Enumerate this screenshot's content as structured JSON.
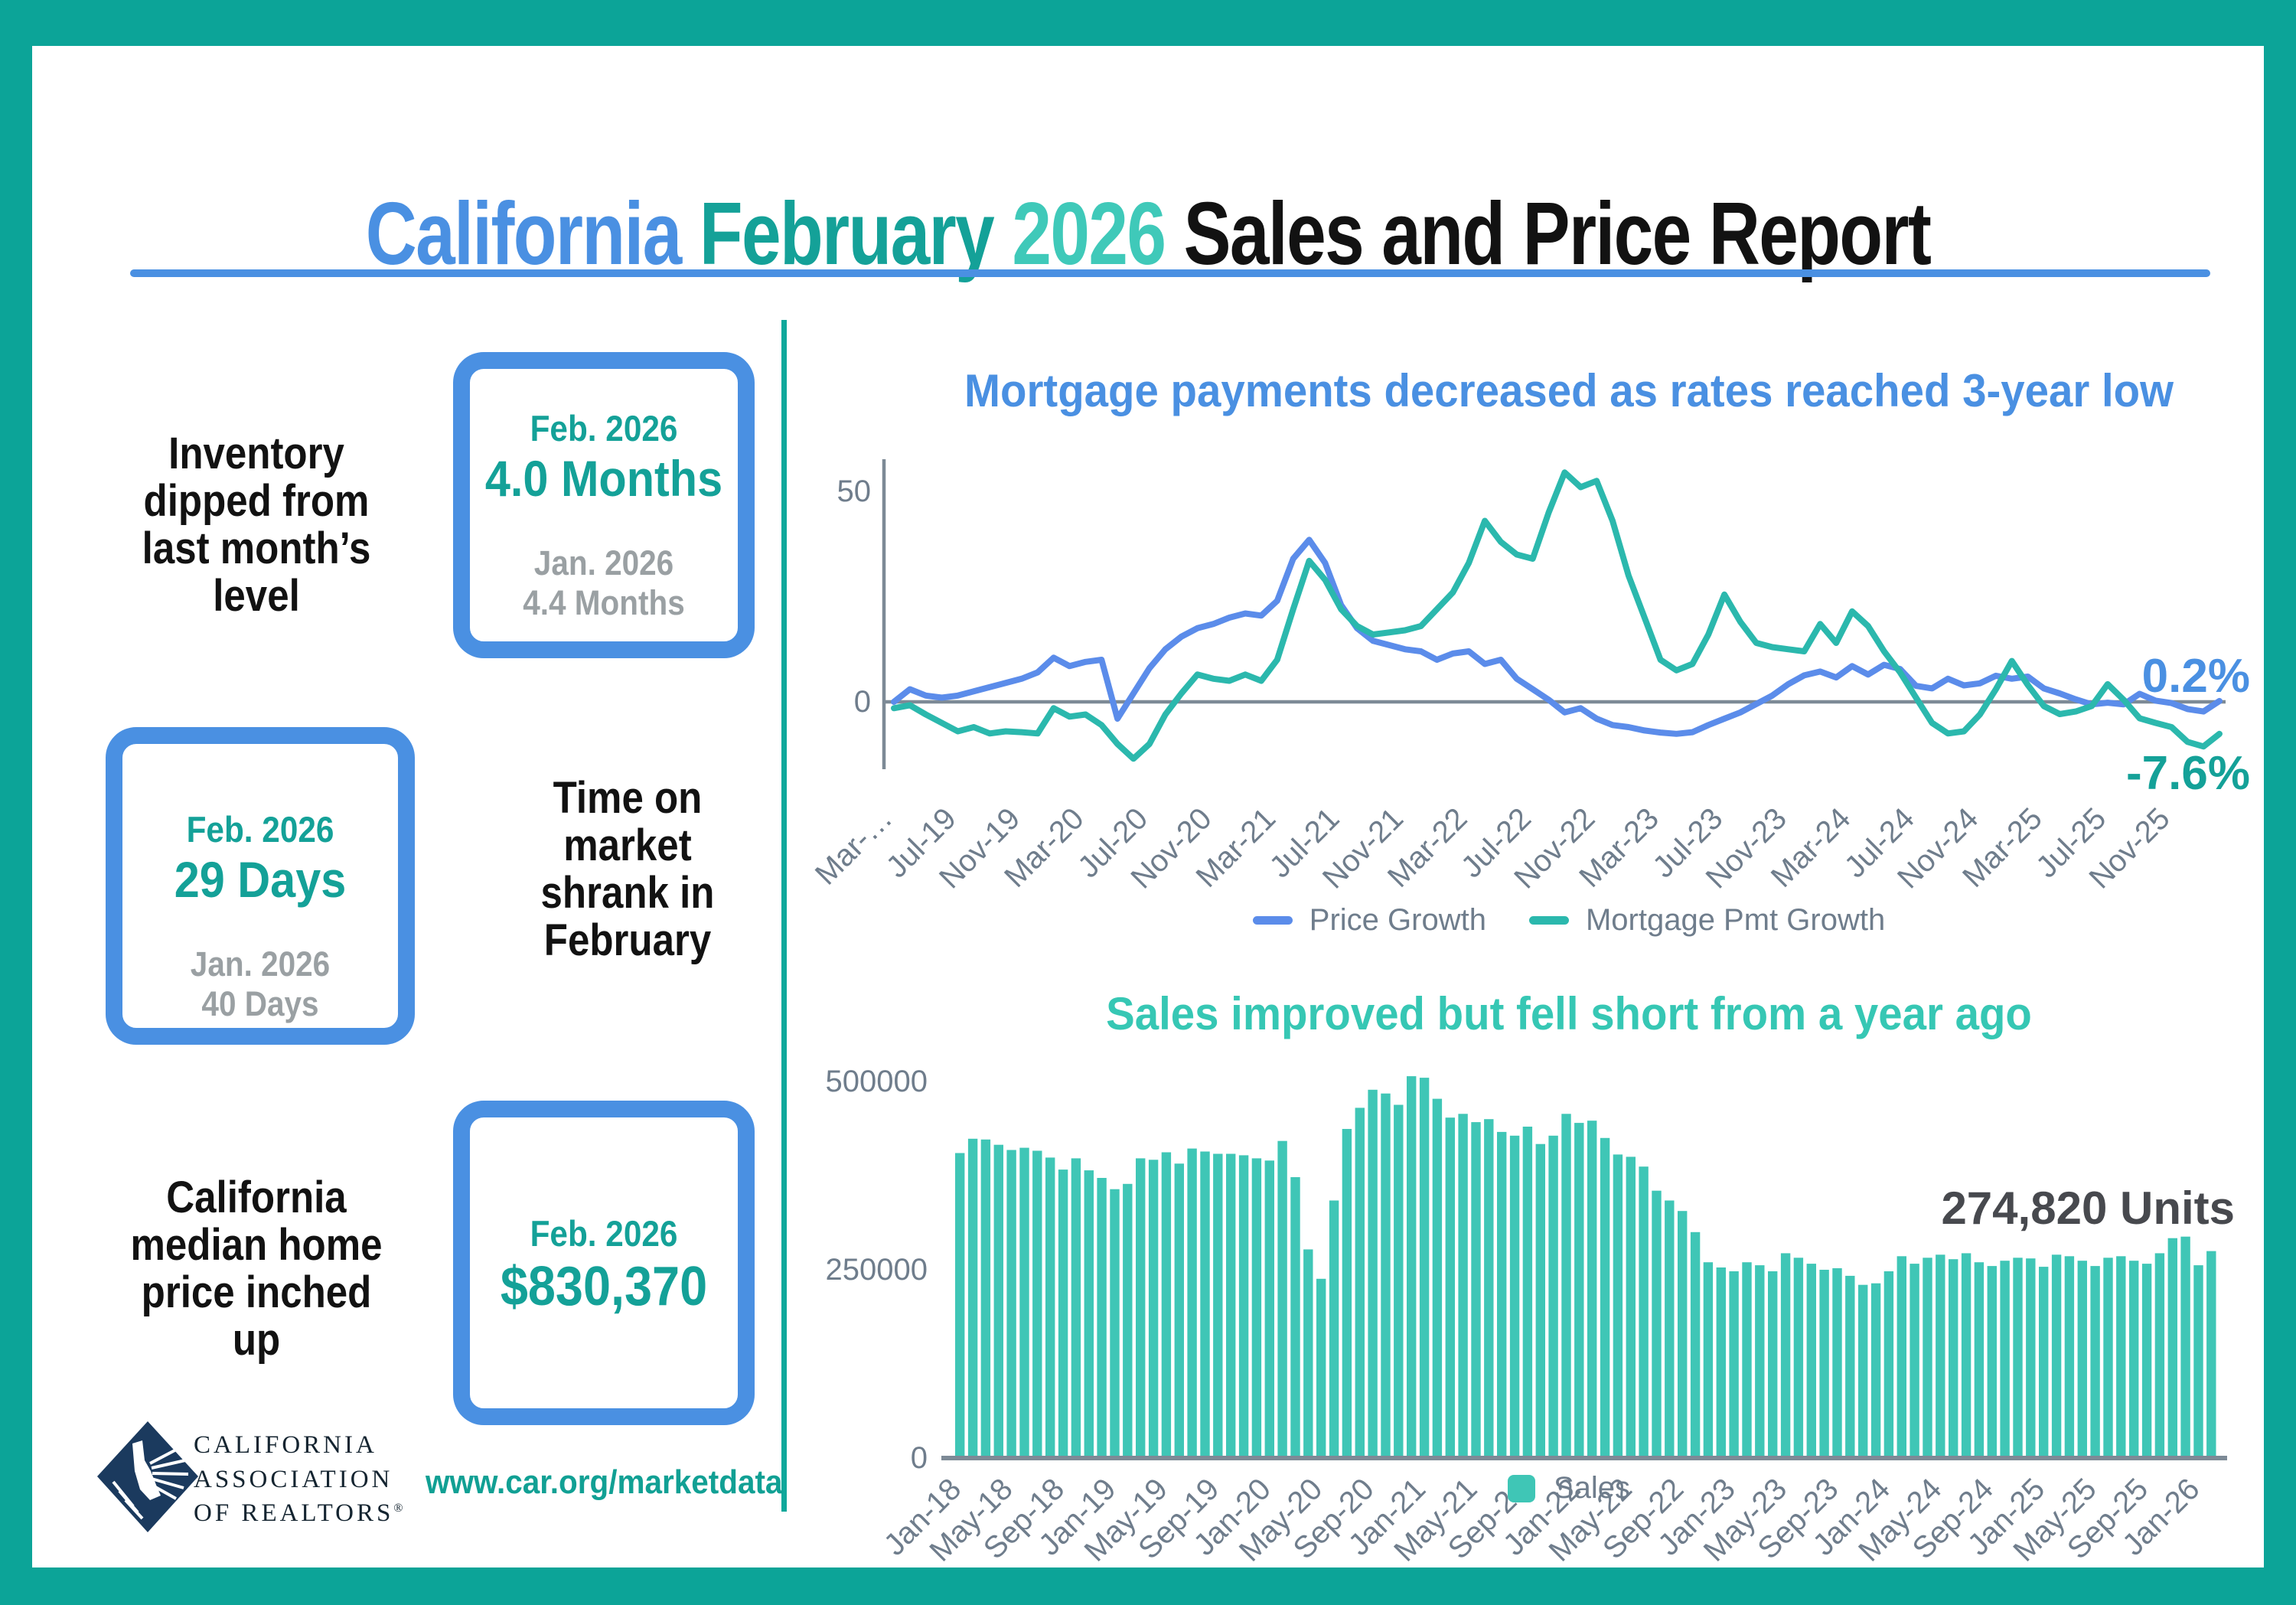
{
  "page": {
    "title_parts": {
      "california": "California",
      "february": "February",
      "year": "2026",
      "rest": "Sales and Price Report"
    },
    "stats": [
      {
        "label": "Inventory\ndipped from\nlast month’s\nlevel",
        "current_period": "Feb. 2026",
        "current_value": "4.0 Months",
        "previous_period": "Jan. 2026",
        "previous_value": "4.4 Months"
      },
      {
        "label": "Time on\nmarket\nshrank in\nFebruary",
        "current_period": "Feb. 2026",
        "current_value": "29 Days",
        "previous_period": "Jan. 2026",
        "previous_value": "40 Days"
      },
      {
        "label": "California\nmedian home\nprice inched\nup",
        "current_period": "Feb. 2026",
        "current_value": "$830,370"
      }
    ],
    "brand": {
      "line1": "CALIFORNIA",
      "line2": "ASSOCIATION",
      "line3": "OF REALTORS",
      "reg_mark": "®",
      "url": "www.car.org/marketdata"
    },
    "palette": {
      "frame_teal": "#0ca498",
      "accent_blue": "#4a90e2",
      "accent_teal_dark": "#14a198",
      "accent_teal_light": "#3fc9b9",
      "stat_gray": "#9aa0a3",
      "axis_gray": "#7d8a96",
      "tick_gray": "#6f7d8c",
      "annotation_dark": "#47494e",
      "logo_navy": "#1b3a5e"
    }
  },
  "chart_data": [
    {
      "type": "line",
      "title": "Mortgage payments decreased as rates reached 3-year low",
      "xlabel": "",
      "ylabel": "",
      "y_ticks": [
        0,
        50
      ],
      "ylim": [
        -15,
        58
      ],
      "tick_every": 4,
      "grid": false,
      "legend_position": "bottom",
      "x_tick_labels": [
        "Mar-…",
        "Jul-19",
        "Nov-19",
        "Mar-20",
        "Jul-20",
        "Nov-20",
        "Mar-21",
        "Jul-21",
        "Nov-21",
        "Mar-22",
        "Jul-22",
        "Nov-22",
        "Mar-23",
        "Jul-23",
        "Nov-23",
        "Mar-24",
        "Jul-24",
        "Nov-24",
        "Mar-25",
        "Jul-25",
        "Nov-25"
      ],
      "x_range_months": "Mar-2019 to Feb-2026",
      "series": [
        {
          "name": "Price Growth",
          "color": "#5b8cea",
          "end_label": "0.2%",
          "values": [
            0,
            3,
            1.5,
            1,
            1.5,
            2.5,
            3.5,
            4.5,
            5.5,
            7,
            10.5,
            8.5,
            9.5,
            10,
            -4,
            2,
            8,
            12.5,
            15.5,
            17.5,
            18.5,
            20,
            21,
            20.5,
            24,
            34,
            38.5,
            33,
            23,
            17.5,
            14.5,
            13.5,
            12.5,
            12,
            10,
            11.5,
            12,
            9,
            10,
            5.5,
            3,
            0.5,
            -2.5,
            -1.5,
            -4,
            -5.5,
            -6,
            -6.8,
            -7.3,
            -7.6,
            -7.2,
            -5.5,
            -4,
            -2.5,
            -0.5,
            1.5,
            4.2,
            6.3,
            7.2,
            5.8,
            8.5,
            6.5,
            8.8,
            7.8,
            3.8,
            3.2,
            5.5,
            3.9,
            4.4,
            6.2,
            5.5,
            6,
            3.2,
            2,
            0.6,
            -0.6,
            -0.2,
            -0.6,
            1.9,
            0.3,
            -0.3,
            -1.7,
            -2.3,
            0.2
          ]
        },
        {
          "name": "Mortgage Pmt Growth",
          "color": "#2bb8ad",
          "end_label": "-7.6%",
          "values": [
            -1.5,
            -0.8,
            -3,
            -5,
            -7,
            -6,
            -7.5,
            -7,
            -7.2,
            -7.5,
            -1.5,
            -3.5,
            -3,
            -5.5,
            -10,
            -13.5,
            -10,
            -3,
            2,
            6.5,
            5.5,
            5,
            6.5,
            5,
            10,
            22,
            33.5,
            29,
            22,
            18,
            16,
            16.5,
            17,
            18,
            22,
            26,
            33,
            43,
            38,
            35,
            34,
            45,
            54.5,
            51,
            52.5,
            43,
            30,
            20,
            10,
            7.5,
            9,
            16,
            25.5,
            19,
            14,
            13,
            12.5,
            12,
            18.5,
            14,
            21.5,
            18,
            12,
            7,
            1,
            -5,
            -7.5,
            -7,
            -3,
            3,
            9.7,
            4,
            -1,
            -2.9,
            -2.3,
            -1,
            4.2,
            0.5,
            -3.9,
            -5,
            -6,
            -9.5,
            -10.6,
            -7.6
          ]
        }
      ]
    },
    {
      "type": "bar",
      "title": "Sales improved but fell short from a year ago",
      "xlabel": "",
      "ylabel": "",
      "y_ticks": [
        0,
        250000,
        500000
      ],
      "ylim": [
        0,
        515000
      ],
      "tick_every": 4,
      "grid": false,
      "legend_position": "bottom",
      "annotation": "274,820 Units",
      "x_tick_labels": [
        "Jan-18",
        "May-18",
        "Sep-18",
        "Jan-19",
        "May-19",
        "Sep-19",
        "Jan-20",
        "May-20",
        "Sep-20",
        "Jan-21",
        "May-21",
        "Sep-21",
        "Jan-22",
        "May-22",
        "Sep-22",
        "Jan-23",
        "May-23",
        "Sep-23",
        "Jan-24",
        "May-24",
        "Sep-24",
        "Jan-25",
        "May-25",
        "Sep-25",
        "Jan-26"
      ],
      "x_range_months": "Jan-2018 to Feb-2026",
      "series": [
        {
          "name": "Sales",
          "color": "#3fc6b6",
          "values": [
            405000,
            424000,
            423000,
            416000,
            409000,
            412000,
            408000,
            399000,
            383000,
            398000,
            382000,
            372000,
            357000,
            364000,
            398000,
            396000,
            406000,
            391000,
            411000,
            407000,
            404000,
            404000,
            402000,
            398000,
            395000,
            421000,
            373000,
            277000,
            238000,
            342000,
            437000,
            465000,
            489000,
            484000,
            469000,
            507000,
            505000,
            477000,
            452000,
            457000,
            446000,
            450000,
            433000,
            428000,
            440000,
            417000,
            428000,
            457000,
            445000,
            448000,
            425000,
            403000,
            400000,
            387000,
            355000,
            342000,
            328000,
            300000,
            260000,
            253000,
            248000,
            260000,
            256000,
            248000,
            272000,
            266000,
            258000,
            250000,
            252000,
            242000,
            230000,
            232000,
            248000,
            268000,
            258000,
            266000,
            270000,
            264000,
            272000,
            260000,
            255000,
            262000,
            266000,
            265000,
            254000,
            270000,
            268000,
            262000,
            255000,
            266000,
            268000,
            262000,
            258000,
            272000,
            292000,
            294000,
            256000,
            274820
          ]
        }
      ]
    }
  ]
}
